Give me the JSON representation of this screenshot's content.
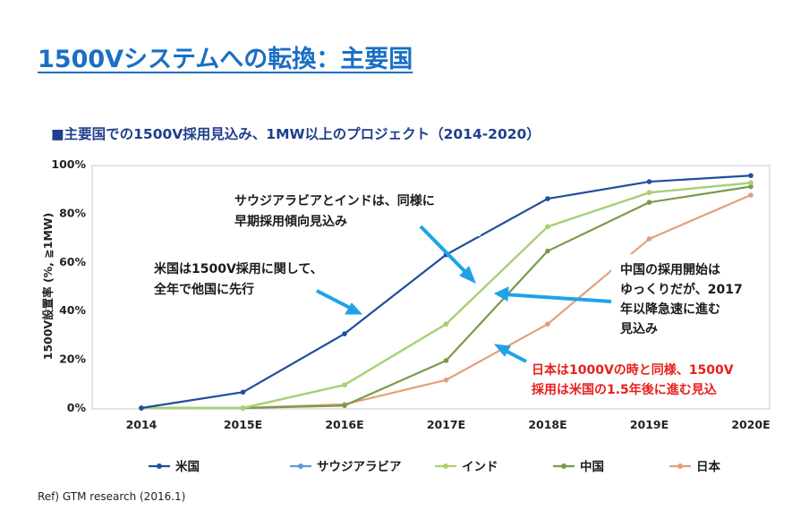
{
  "page": {
    "title": "1500Vシステムへの転換：主要国",
    "subtitle": "■主要国での1500V採用見込み、1MW以上のプロジェクト（2014-2020）",
    "source": "Ref) GTM research (2016.1)"
  },
  "chart_data": {
    "type": "line",
    "ylabel": "1500V設置率 (%, ≧1MW)",
    "categories": [
      "2014",
      "2015E",
      "2016E",
      "2017E",
      "2018E",
      "2019E",
      "2020E"
    ],
    "ylim": [
      0,
      100
    ],
    "yticks": [
      "0%",
      "20%",
      "40%",
      "60%",
      "80%",
      "100%"
    ],
    "grid": false,
    "legend_position": "bottom",
    "series": [
      {
        "name": "米国",
        "color": "#1f4e9c",
        "values": [
          0,
          6.5,
          30.5,
          63,
          86,
          93,
          95.5
        ]
      },
      {
        "name": "サウジアラビア",
        "color": "#5b9bd5",
        "values": [
          0,
          0,
          9.5,
          34.5,
          74.5,
          88.5,
          92.5
        ]
      },
      {
        "name": "インド",
        "color": "#a9d36b",
        "values": [
          0,
          0,
          9.5,
          34.5,
          74.5,
          88.5,
          92.5
        ]
      },
      {
        "name": "中国",
        "color": "#7a9a4a",
        "values": [
          0,
          0,
          1,
          19.5,
          64.5,
          84.5,
          91
        ]
      },
      {
        "name": "日本",
        "color": "#e2a07a",
        "values": [
          0,
          0,
          1.5,
          11.5,
          34.5,
          69.5,
          87.5
        ]
      }
    ],
    "annotations": [
      {
        "id": "saudi-india",
        "lines": [
          "サウジアラビアとインドは、同様に",
          "早期採用傾向見込み"
        ]
      },
      {
        "id": "usa",
        "lines": [
          "米国は1500V採用に関して、",
          "全年で他国に先行"
        ]
      },
      {
        "id": "china",
        "lines": [
          "中国の採用開始は",
          "ゆっくりだが、2017",
          "年以降急速に進む",
          "見込み"
        ]
      },
      {
        "id": "japan",
        "lines": [
          "日本は1000Vの時と同様、1500V",
          "採用は米国の1.5年後に進む見込"
        ]
      }
    ]
  }
}
